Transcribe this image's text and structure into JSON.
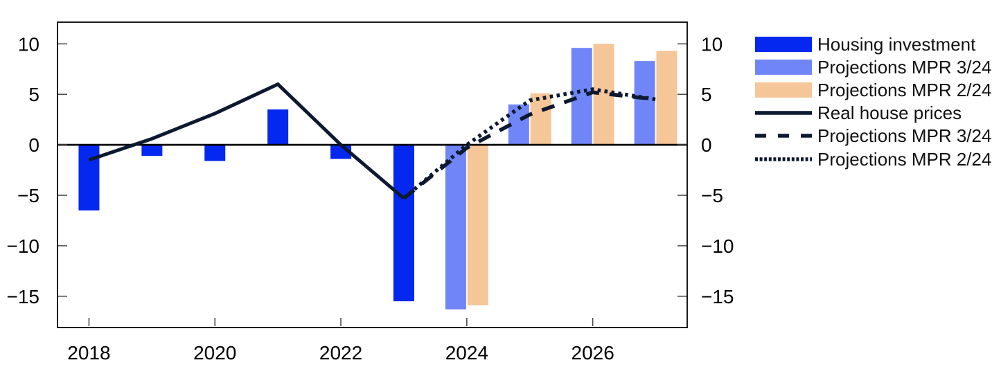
{
  "page": {
    "background": "#ffffff"
  },
  "colors": {
    "housing_bar": "#0528F0",
    "mpr_3_24_bar": "#7086F8",
    "mpr_2_24_bar": "#F5C698",
    "line_navy": "#0D1930",
    "axis_frame": "#1a1a1a",
    "tick": "#4d4d4d",
    "zero_line": "#000000",
    "label_text": "#000000"
  },
  "chart_data": {
    "type": "combo",
    "title": "",
    "xlabel": "",
    "ylabel": "",
    "grid": false,
    "xlim": [
      2017.5,
      2027.5
    ],
    "ylim": [
      -18.1,
      12.15
    ],
    "xticks": [
      2018,
      2020,
      2022,
      2024,
      2026
    ],
    "xtick_labels": [
      "2018",
      "2020",
      "2022",
      "2024",
      "2026"
    ],
    "yticks": [
      10,
      5,
      0,
      -5,
      -10,
      -15
    ],
    "ytick_labels": [
      "10",
      "5",
      "0",
      "−5",
      "−10",
      "−15"
    ],
    "right_axis_mirrors_left": true,
    "zero_line": true,
    "legend_position": "right-outside",
    "series": [
      {
        "name": "Housing investment",
        "type": "bar",
        "color": "#0528F0",
        "offset_years": 0,
        "x": [
          2018,
          2019,
          2020,
          2021,
          2022,
          2023
        ],
        "values": [
          -6.5,
          -1.1,
          -1.6,
          3.5,
          -1.4,
          -15.5
        ]
      },
      {
        "name": "Projections MPR 3/24",
        "type": "bar",
        "color": "#7086F8",
        "offset_years": -0.175,
        "x": [
          2024,
          2025,
          2026,
          2027
        ],
        "values": [
          -16.3,
          4.0,
          9.6,
          8.3
        ]
      },
      {
        "name": "Projections MPR 2/24",
        "type": "bar",
        "color": "#F5C698",
        "offset_years": 0.175,
        "x": [
          2024,
          2025,
          2026,
          2027
        ],
        "values": [
          -15.9,
          5.1,
          10.0,
          9.3
        ]
      },
      {
        "name": "Real house prices",
        "type": "line",
        "style": "solid",
        "color": "#0D1930",
        "x": [
          2018,
          2019,
          2020,
          2021,
          2022,
          2023
        ],
        "values": [
          -1.5,
          0.6,
          3.1,
          6.0,
          0.0,
          -5.3
        ]
      },
      {
        "name": "Projections MPR 3/24",
        "type": "line",
        "style": "dashed",
        "color": "#0D1930",
        "x": [
          2023,
          2024,
          2025,
          2026,
          2027
        ],
        "values": [
          -5.3,
          -0.3,
          3.0,
          5.2,
          4.5
        ]
      },
      {
        "name": "Projections MPR 2/24",
        "type": "line",
        "style": "dotted",
        "color": "#0D1930",
        "x": [
          2023,
          2024,
          2025,
          2026,
          2027
        ],
        "values": [
          -5.3,
          0.0,
          4.4,
          5.5,
          4.5
        ]
      }
    ]
  },
  "legend": {
    "items": [
      {
        "label": "Housing investment",
        "swatch": "bar",
        "color": "#0528F0"
      },
      {
        "label": "Projections MPR 3/24",
        "swatch": "bar",
        "color": "#7086F8"
      },
      {
        "label": "Projections MPR 2/24",
        "swatch": "bar",
        "color": "#F5C698"
      },
      {
        "label": "Real house prices",
        "swatch": "line-solid",
        "color": "#0D1930"
      },
      {
        "label": "Projections MPR 3/24",
        "swatch": "line-dashed",
        "color": "#0D1930"
      },
      {
        "label": "Projections MPR 2/24",
        "swatch": "line-dotted",
        "color": "#0D1930"
      }
    ]
  }
}
